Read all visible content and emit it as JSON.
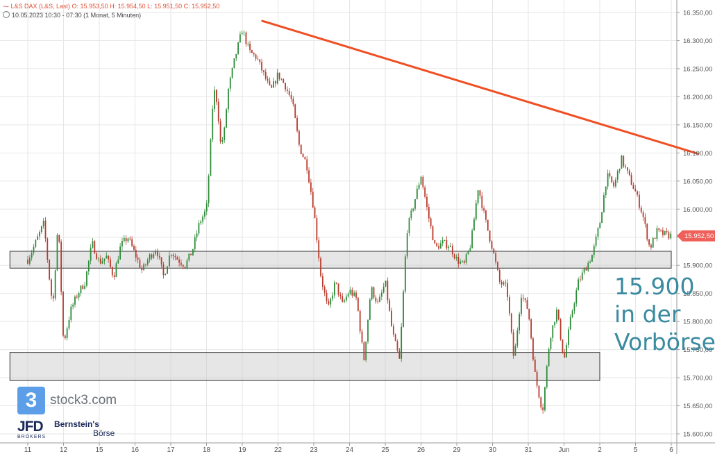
{
  "header": {
    "instrument_line": "L&S DAX (L&S, Last)  O: 15.953,50  H: 15.954,50  L: 15.951,50  C: 15.952,50",
    "range_line": "10.05.2023 10:30 - 07:30  (1 Monat, 5 Minuten)"
  },
  "annotation": [
    "15.900",
    "in der",
    "Vorbörse"
  ],
  "branding": {
    "stock3_mark": "3",
    "stock3_name": "stock3.com",
    "jfd_name": "JFD",
    "jfd_sub": "BROKERS",
    "bernstein_line1": "Bernstein's",
    "bernstein_line2": "Börse"
  },
  "colors": {
    "up": "#2e8b3a",
    "down": "#b83a2c",
    "trendline": "#f04e23",
    "last_price_bg": "#f0605a",
    "annotation": "#3a8aa0"
  },
  "chart_data": {
    "type": "line",
    "style": "candlestick",
    "ylim": [
      15600,
      16375
    ],
    "y_ticks": [
      "16.350,00",
      "16.300,00",
      "16.250,00",
      "16.200,00",
      "16.150,00",
      "16.100,00",
      "16.050,00",
      "16.000,00",
      "15.950,00",
      "15.900,00",
      "15.850,00",
      "15.800,00",
      "15.750,00",
      "15.700,00",
      "15.650,00",
      "15.600,00"
    ],
    "y_tick_values": [
      16350,
      16300,
      16250,
      16200,
      16150,
      16100,
      16050,
      16000,
      15950,
      15900,
      15850,
      15800,
      15750,
      15700,
      15650,
      15600
    ],
    "x_labels": [
      "11",
      "12",
      "15",
      "16",
      "17",
      "18",
      "19",
      "22",
      "23",
      "24",
      "25",
      "26",
      "29",
      "30",
      "31",
      "Jun",
      "2",
      "5",
      "6"
    ],
    "grid": true,
    "last_price": 15952.5,
    "last_price_label": "15.952,50",
    "path_day_index": [
      0,
      0.15,
      0.45,
      0.6,
      0.7,
      0.85,
      1.0,
      1.2,
      1.4,
      1.6,
      1.8,
      2.0,
      2.2,
      2.4,
      2.6,
      2.8,
      3.0,
      3.2,
      3.4,
      3.6,
      3.8,
      4.0,
      4.2,
      4.4,
      4.6,
      4.8,
      5.0,
      5.1,
      5.2,
      5.3,
      5.4,
      5.5,
      5.6,
      5.8,
      6.0,
      6.2,
      6.4,
      6.6,
      6.8,
      7.0,
      7.2,
      7.4,
      7.6,
      7.8,
      8.0,
      8.2,
      8.4,
      8.6,
      8.8,
      9.0,
      9.2,
      9.4,
      9.6,
      9.8,
      10.0,
      10.2,
      10.4,
      10.6,
      10.8,
      11.0,
      11.2,
      11.4,
      11.6,
      11.8,
      12.0,
      12.2,
      12.4,
      12.6,
      12.8,
      13.0,
      13.2,
      13.4,
      13.6,
      13.8,
      14.0,
      14.2,
      14.4,
      14.6,
      14.8,
      15.0,
      15.2,
      15.4,
      15.6,
      15.8,
      16.0,
      16.2,
      16.4,
      16.6,
      16.8,
      17.0,
      17.2,
      17.4,
      17.6,
      17.8,
      18.0
    ],
    "path_values": [
      15910,
      15930,
      15975,
      15880,
      15825,
      15980,
      15760,
      15820,
      15850,
      15870,
      15940,
      15905,
      15915,
      15880,
      15935,
      15950,
      15920,
      15890,
      15915,
      15930,
      15880,
      15925,
      15910,
      15900,
      15925,
      15975,
      16000,
      16100,
      16215,
      16190,
      16110,
      16140,
      16210,
      16270,
      16320,
      16280,
      16270,
      16240,
      16210,
      16240,
      16220,
      16190,
      16110,
      16080,
      16000,
      15880,
      15820,
      15870,
      15830,
      15855,
      15840,
      15730,
      15860,
      15830,
      15870,
      15780,
      15730,
      15960,
      16010,
      16060,
      15990,
      15930,
      15940,
      15935,
      15910,
      15900,
      15940,
      16040,
      15980,
      15930,
      15870,
      15860,
      15730,
      15850,
      15820,
      15700,
      15640,
      15770,
      15820,
      15730,
      15810,
      15870,
      15895,
      15920,
      15975,
      16060,
      16040,
      16090,
      16060,
      16030,
      15990,
      15930,
      15960,
      15955,
      15952.5
    ],
    "trendline": {
      "from_day": 6.25,
      "from_value": 16335,
      "to_day": 18.0,
      "to_value": 16100
    },
    "support_zones": [
      {
        "from_day": -0.5,
        "to_day": 18.0,
        "low": 15895,
        "high": 15925
      },
      {
        "from_day": -0.5,
        "to_day": 16.0,
        "low": 15695,
        "high": 15745
      }
    ]
  }
}
